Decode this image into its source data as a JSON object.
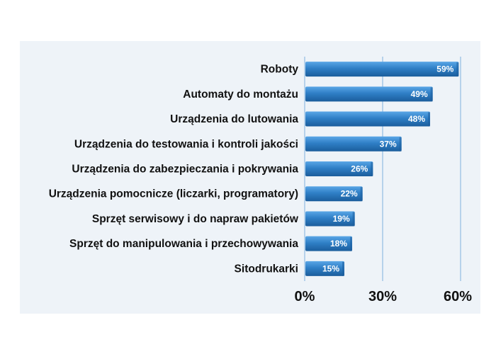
{
  "chart_data": {
    "type": "bar",
    "orientation": "horizontal",
    "title": "",
    "xlabel": "",
    "ylabel": "",
    "categories": [
      "Roboty",
      "Automaty do montażu",
      "Urządzenia do lutowania",
      "Urządzenia do testowania i kontroli jakości",
      "Urządzenia do zabezpieczania i pokrywania",
      "Urządzenia pomocnicze (liczarki, programatory)",
      "Sprzęt serwisowy i do napraw pakietów",
      "Sprzęt do manipulowania i przechowywania",
      "Sitodrukarki"
    ],
    "values": [
      59,
      49,
      48,
      37,
      26,
      22,
      19,
      18,
      15
    ],
    "value_labels": [
      "59%",
      "49%",
      "48%",
      "37%",
      "26%",
      "22%",
      "19%",
      "18%",
      "15%"
    ],
    "xlim": [
      0,
      60
    ],
    "x_ticks": [
      0,
      30,
      60
    ],
    "x_tick_labels": [
      "0%",
      "30%",
      "60%"
    ],
    "grid": true,
    "colors": {
      "bar": "#2f7fc6",
      "bar_light": "#5aa6e6",
      "bar_dark": "#1b5d9c",
      "grid": "#7fb0de",
      "panel": "#eef3f8"
    }
  }
}
